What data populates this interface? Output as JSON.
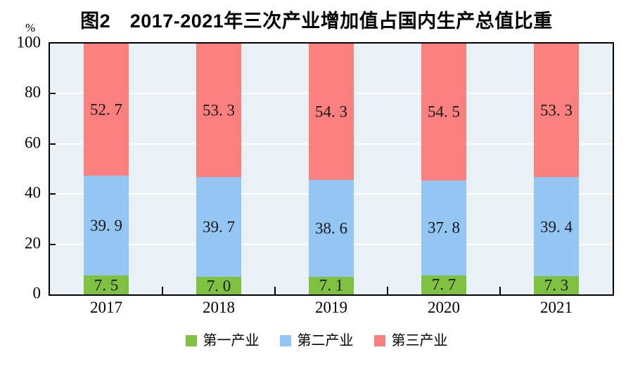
{
  "title": "图2　2017-2021年三次产业增加值占国内生产总值比重",
  "y_axis": {
    "unit": "%",
    "ticks": [
      0,
      20,
      40,
      60,
      80,
      100
    ],
    "max": 100
  },
  "chart_data": {
    "type": "bar",
    "stacked": true,
    "title": "图2　2017-2021年三次产业增加值占国内生产总值比重",
    "categories": [
      "2017",
      "2018",
      "2019",
      "2020",
      "2021"
    ],
    "series": [
      {
        "name": "第一产业",
        "color": "#7fc241",
        "values": [
          7.5,
          7.0,
          7.1,
          7.7,
          7.3
        ],
        "labels": [
          "7.5",
          "7.0",
          "7.1",
          "7.7",
          "7.3"
        ]
      },
      {
        "name": "第二产业",
        "color": "#93c6f2",
        "values": [
          39.9,
          39.7,
          38.6,
          37.8,
          39.4
        ],
        "labels": [
          "39.9",
          "39.7",
          "38.6",
          "37.8",
          "39.4"
        ]
      },
      {
        "name": "第三产业",
        "color": "#fa7f7f",
        "values": [
          52.7,
          53.3,
          54.3,
          54.5,
          53.3
        ],
        "labels": [
          "52.7",
          "53.3",
          "54.3",
          "54.5",
          "53.3"
        ]
      }
    ],
    "xlabel": "",
    "ylabel": "%",
    "ylim": [
      0,
      100
    ],
    "yticks": [
      0,
      20,
      40,
      60,
      80,
      100
    ],
    "grid": true,
    "gridline_color": "#ffffff",
    "plot_background": "#e9f1f6",
    "legend_position": "bottom",
    "legend": [
      "第一产业",
      "第二产业",
      "第三产业"
    ]
  }
}
